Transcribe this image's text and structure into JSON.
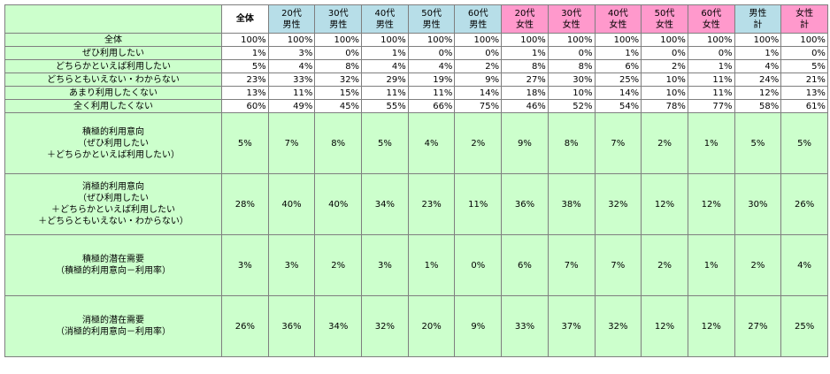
{
  "table": {
    "header": [
      [
        "全体"
      ],
      [
        "20代",
        "男性"
      ],
      [
        "30代",
        "男性"
      ],
      [
        "40代",
        "男性"
      ],
      [
        "50代",
        "男性"
      ],
      [
        "60代",
        "男性"
      ],
      [
        "20代",
        "女性"
      ],
      [
        "30代",
        "女性"
      ],
      [
        "40代",
        "女性"
      ],
      [
        "50代",
        "女性"
      ],
      [
        "60代",
        "女性"
      ],
      [
        "男性",
        "計"
      ],
      [
        "女性",
        "計"
      ]
    ],
    "rows": [
      {
        "label": [
          "全体"
        ],
        "values": [
          "100%",
          "100%",
          "100%",
          "100%",
          "100%",
          "100%",
          "100%",
          "100%",
          "100%",
          "100%",
          "100%",
          "100%",
          "100%"
        ]
      },
      {
        "label": [
          "ぜひ利用したい"
        ],
        "values": [
          "1%",
          "3%",
          "0%",
          "1%",
          "0%",
          "0%",
          "1%",
          "0%",
          "1%",
          "0%",
          "0%",
          "1%",
          "0%"
        ]
      },
      {
        "label": [
          "どちらかといえば利用したい"
        ],
        "values": [
          "5%",
          "4%",
          "8%",
          "4%",
          "4%",
          "2%",
          "8%",
          "8%",
          "6%",
          "2%",
          "1%",
          "4%",
          "5%"
        ]
      },
      {
        "label": [
          "どちらともいえない・わからない"
        ],
        "values": [
          "23%",
          "33%",
          "32%",
          "29%",
          "19%",
          "9%",
          "27%",
          "30%",
          "25%",
          "10%",
          "11%",
          "24%",
          "21%"
        ]
      },
      {
        "label": [
          "あまり利用したくない"
        ],
        "values": [
          "13%",
          "11%",
          "15%",
          "11%",
          "11%",
          "14%",
          "18%",
          "10%",
          "14%",
          "10%",
          "11%",
          "12%",
          "13%"
        ]
      },
      {
        "label": [
          "全く利用したくない"
        ],
        "values": [
          "60%",
          "49%",
          "45%",
          "55%",
          "66%",
          "75%",
          "46%",
          "52%",
          "54%",
          "78%",
          "77%",
          "58%",
          "61%"
        ]
      },
      {
        "label": [
          "積極的利用意向",
          "（ぜひ利用したい",
          "＋どちらかといえば利用したい）"
        ],
        "values": [
          "5%",
          "7%",
          "8%",
          "5%",
          "4%",
          "2%",
          "9%",
          "8%",
          "7%",
          "2%",
          "1%",
          "5%",
          "5%"
        ]
      },
      {
        "label": [
          "消極的利用意向",
          "（ぜひ利用したい",
          "＋どちらかといえば利用したい",
          "＋どちらともいえない・わからない）"
        ],
        "values": [
          "28%",
          "40%",
          "40%",
          "34%",
          "23%",
          "11%",
          "36%",
          "38%",
          "32%",
          "12%",
          "12%",
          "30%",
          "26%"
        ]
      },
      {
        "label": [
          "積極的潜在需要",
          "（積極的利用意向－利用率）"
        ],
        "values": [
          "3%",
          "3%",
          "2%",
          "3%",
          "1%",
          "0%",
          "6%",
          "7%",
          "7%",
          "2%",
          "1%",
          "2%",
          "4%"
        ]
      },
      {
        "label": [
          "消極的潜在需要",
          "（消極的利用意向－利用率）"
        ],
        "values": [
          "26%",
          "36%",
          "34%",
          "32%",
          "20%",
          "9%",
          "33%",
          "37%",
          "32%",
          "12%",
          "12%",
          "27%",
          "25%"
        ]
      }
    ]
  }
}
